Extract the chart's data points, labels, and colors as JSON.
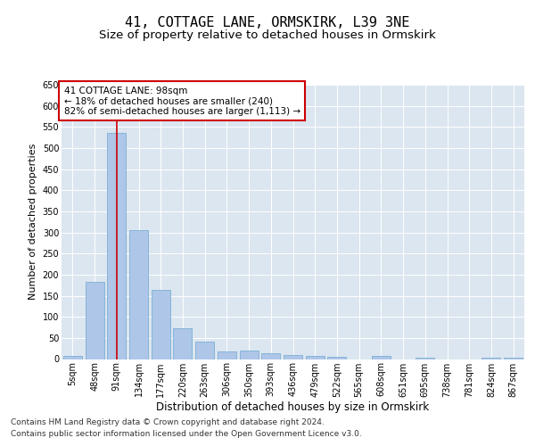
{
  "title": "41, COTTAGE LANE, ORMSKIRK, L39 3NE",
  "subtitle": "Size of property relative to detached houses in Ormskirk",
  "xlabel": "Distribution of detached houses by size in Ormskirk",
  "ylabel": "Number of detached properties",
  "categories": [
    "5sqm",
    "48sqm",
    "91sqm",
    "134sqm",
    "177sqm",
    "220sqm",
    "263sqm",
    "306sqm",
    "350sqm",
    "393sqm",
    "436sqm",
    "479sqm",
    "522sqm",
    "565sqm",
    "608sqm",
    "651sqm",
    "695sqm",
    "738sqm",
    "781sqm",
    "824sqm",
    "867sqm"
  ],
  "values": [
    8,
    182,
    535,
    305,
    163,
    72,
    42,
    18,
    20,
    14,
    10,
    8,
    5,
    0,
    7,
    0,
    3,
    0,
    0,
    4,
    3
  ],
  "bar_color": "#aec6e8",
  "bar_edge_color": "#7aafd4",
  "vline_x": 2,
  "vline_color": "#cc0000",
  "annotation_text": "41 COTTAGE LANE: 98sqm\n← 18% of detached houses are smaller (240)\n82% of semi-detached houses are larger (1,113) →",
  "annotation_box_color": "#cc0000",
  "annotation_text_color": "#000000",
  "ylim": [
    0,
    650
  ],
  "yticks": [
    0,
    50,
    100,
    150,
    200,
    250,
    300,
    350,
    400,
    450,
    500,
    550,
    600,
    650
  ],
  "plot_background_color": "#dce6f0",
  "footer_line1": "Contains HM Land Registry data © Crown copyright and database right 2024.",
  "footer_line2": "Contains public sector information licensed under the Open Government Licence v3.0.",
  "title_fontsize": 11,
  "subtitle_fontsize": 9.5,
  "xlabel_fontsize": 8.5,
  "ylabel_fontsize": 8,
  "tick_fontsize": 7,
  "annotation_fontsize": 7.5,
  "footer_fontsize": 6.5
}
